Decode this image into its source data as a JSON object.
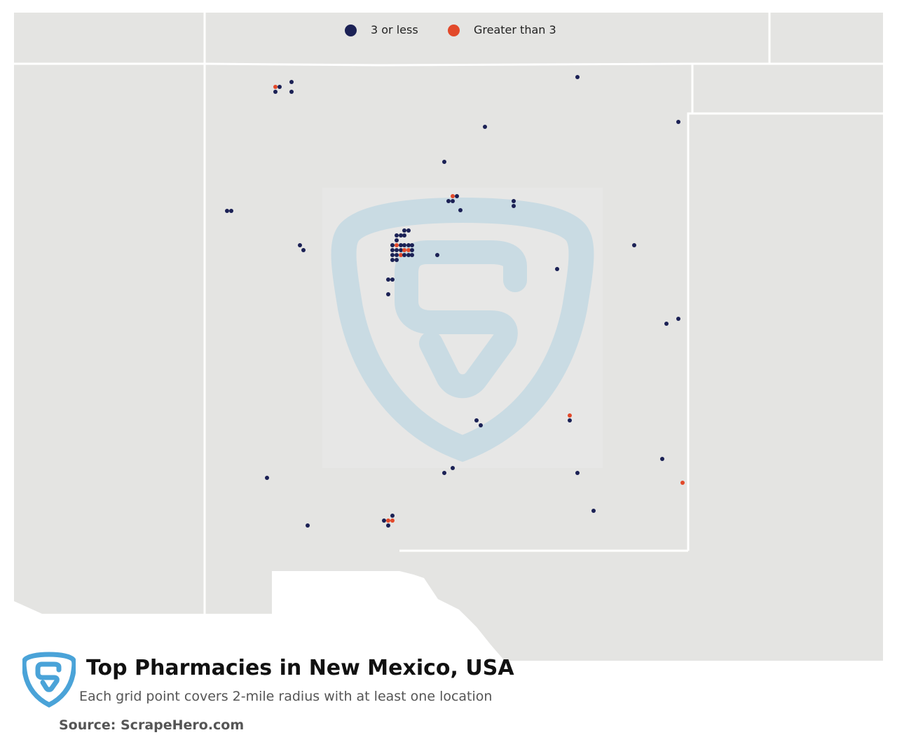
{
  "map": {
    "title": "Top Pharmacies in New Mexico, USA",
    "subtitle": "Each grid point covers 2-mile radius with at least one location",
    "source": "Source: ScrapeHero.com",
    "colors": {
      "land": "#e4e4e2",
      "border": "#ffffff",
      "low": "#1b2155",
      "high": "#e2492a",
      "logo": "#4aa3d8",
      "watermark": "#c9dbe3"
    },
    "legend": [
      {
        "label": "3 or less",
        "category": "low"
      },
      {
        "label": "Greater than 3",
        "category": "high"
      }
    ]
  }
}
